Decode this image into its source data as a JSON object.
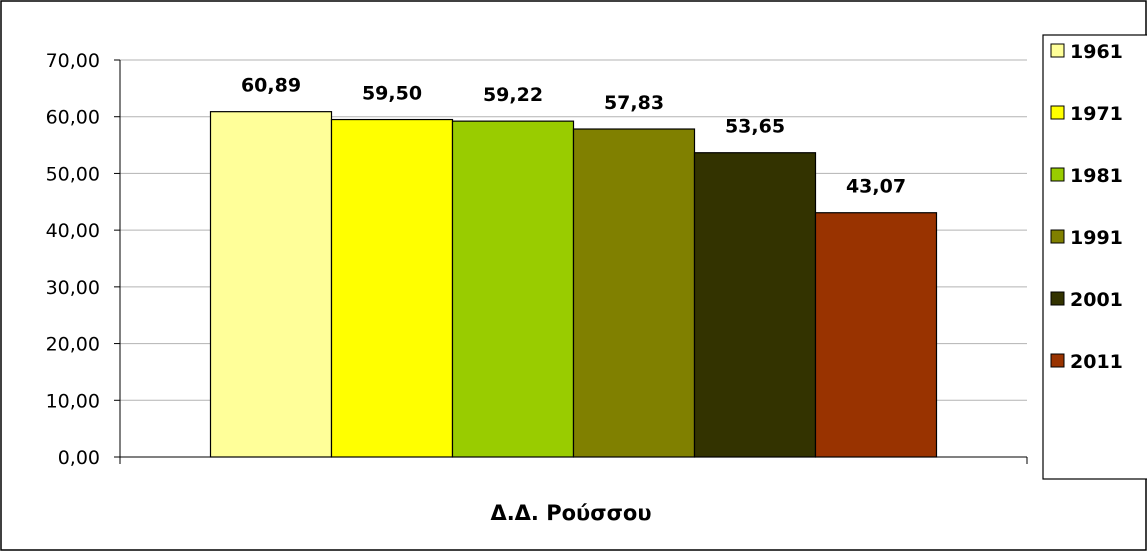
{
  "chart_data": {
    "type": "bar",
    "categories": [
      "Δ.Δ. Ρούσσου"
    ],
    "xlabel": "Δ.Δ. Ρούσσου",
    "ylabel": "",
    "title": "",
    "ylim": [
      0,
      70
    ],
    "yticks": [
      "0,00",
      "10,00",
      "20,00",
      "30,00",
      "40,00",
      "50,00",
      "60,00",
      "70,00"
    ],
    "grid": true,
    "legend_position": "right",
    "series": [
      {
        "name": "1961",
        "values": [
          60.89
        ],
        "label": "60,89",
        "color": "#ffff99"
      },
      {
        "name": "1971",
        "values": [
          59.5
        ],
        "label": "59,50",
        "color": "#ffff00"
      },
      {
        "name": "1981",
        "values": [
          59.22
        ],
        "label": "59,22",
        "color": "#99cc00"
      },
      {
        "name": "1991",
        "values": [
          57.83
        ],
        "label": "57,83",
        "color": "#808000"
      },
      {
        "name": "2001",
        "values": [
          53.65
        ],
        "label": "53,65",
        "color": "#333300"
      },
      {
        "name": "2011",
        "values": [
          43.07
        ],
        "label": "43,07",
        "color": "#993300"
      }
    ]
  }
}
